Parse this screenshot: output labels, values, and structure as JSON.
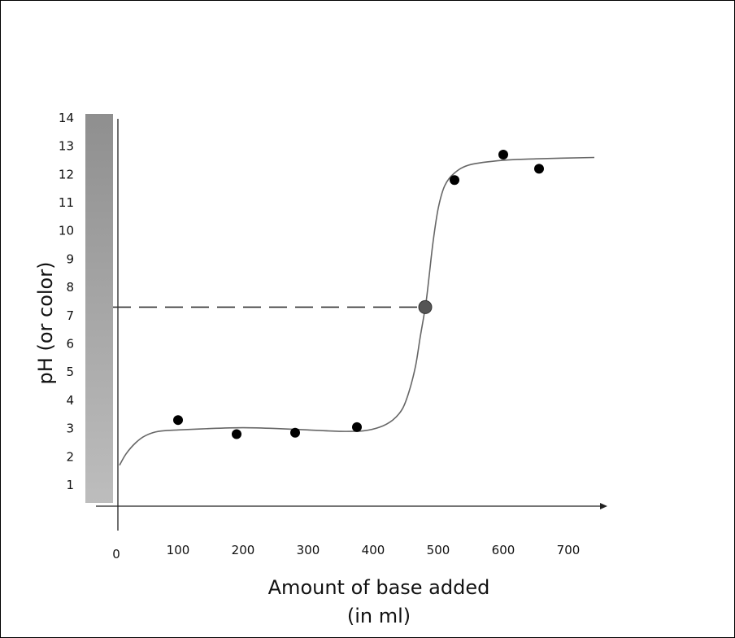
{
  "chart_data": {
    "type": "scatter",
    "title": "",
    "xlabel_line1": "Amount of base added",
    "xlabel_line2": "(in ml)",
    "ylabel": "pH (or color)",
    "xlim": [
      -10,
      740
    ],
    "ylim": [
      0.4,
      14
    ],
    "x_ticks": [
      {
        "value": 0,
        "label": "0"
      },
      {
        "value": 100,
        "label": "100"
      },
      {
        "value": 200,
        "label": "200"
      },
      {
        "value": 300,
        "label": "300"
      },
      {
        "value": 400,
        "label": "400"
      },
      {
        "value": 500,
        "label": "500"
      },
      {
        "value": 600,
        "label": "600"
      },
      {
        "value": 700,
        "label": "700"
      }
    ],
    "y_ticks": [
      {
        "value": 1,
        "label": "1"
      },
      {
        "value": 2,
        "label": "2"
      },
      {
        "value": 3,
        "label": "3"
      },
      {
        "value": 4,
        "label": "4"
      },
      {
        "value": 5,
        "label": "5"
      },
      {
        "value": 6,
        "label": "6"
      },
      {
        "value": 7,
        "label": "7"
      },
      {
        "value": 8,
        "label": "8"
      },
      {
        "value": 9,
        "label": "9"
      },
      {
        "value": 10,
        "label": "10"
      },
      {
        "value": 11,
        "label": "11"
      },
      {
        "value": 12,
        "label": "12"
      },
      {
        "value": 13,
        "label": "13"
      },
      {
        "value": 14,
        "label": "14"
      }
    ],
    "points": [
      {
        "x": 100,
        "y": 3.3
      },
      {
        "x": 190,
        "y": 2.8
      },
      {
        "x": 280,
        "y": 2.85
      },
      {
        "x": 375,
        "y": 3.05
      },
      {
        "x": 525,
        "y": 11.8
      },
      {
        "x": 600,
        "y": 12.7
      },
      {
        "x": 655,
        "y": 12.2
      }
    ],
    "equivalence_point": {
      "x": 480,
      "y": 7.3
    },
    "fit_curve": [
      [
        10,
        1.7
      ],
      [
        20,
        2.1
      ],
      [
        35,
        2.5
      ],
      [
        50,
        2.75
      ],
      [
        70,
        2.9
      ],
      [
        100,
        2.95
      ],
      [
        150,
        3.0
      ],
      [
        200,
        3.03
      ],
      [
        250,
        3.0
      ],
      [
        300,
        2.95
      ],
      [
        350,
        2.9
      ],
      [
        385,
        2.92
      ],
      [
        410,
        3.05
      ],
      [
        430,
        3.3
      ],
      [
        445,
        3.7
      ],
      [
        455,
        4.3
      ],
      [
        465,
        5.2
      ],
      [
        472,
        6.2
      ],
      [
        478,
        7.0
      ],
      [
        482,
        7.6
      ],
      [
        487,
        8.6
      ],
      [
        492,
        9.6
      ],
      [
        500,
        10.8
      ],
      [
        510,
        11.6
      ],
      [
        525,
        12.05
      ],
      [
        550,
        12.35
      ],
      [
        600,
        12.5
      ],
      [
        650,
        12.55
      ],
      [
        740,
        12.6
      ]
    ],
    "grid": false,
    "legend": "none",
    "colors": {
      "points": "#000000",
      "equivalence_point": "#555555",
      "curve": "#666666",
      "dashed_line": "#333333",
      "gradient_top": "#8f8f8f",
      "gradient_bottom": "#bdbdbd"
    }
  }
}
